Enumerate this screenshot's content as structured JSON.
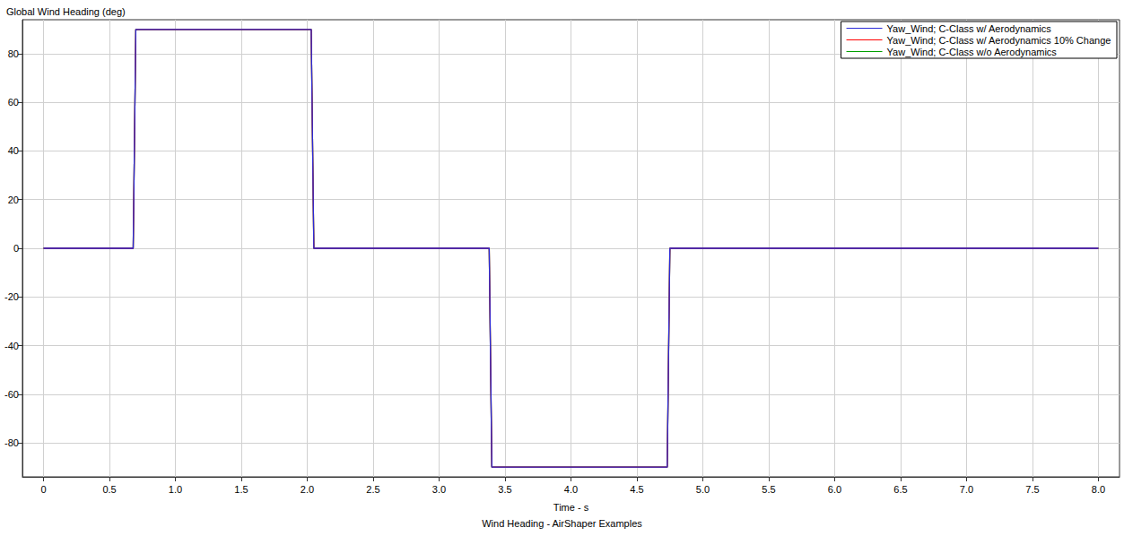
{
  "chart_data": {
    "type": "line",
    "title": "Wind Heading - AirShaper Examples",
    "y_label": "Global Wind Heading (deg)",
    "x_label": "Time - s",
    "x": [
      0,
      0.68,
      0.7,
      2.03,
      2.05,
      3.38,
      3.4,
      4.73,
      4.75,
      8
    ],
    "series": [
      {
        "name": "Yaw_Wind; C-Class w/ Aerodynamics",
        "color": "#2a2ad8",
        "values": [
          0,
          0,
          90,
          90,
          0,
          0,
          -90,
          -90,
          0,
          0
        ]
      },
      {
        "name": "Yaw_Wind; C-Class w/ Aerodynamics 10% Change",
        "color": "#ff0000",
        "values": [
          0,
          0,
          90,
          90,
          0,
          0,
          -90,
          -90,
          0,
          0
        ]
      },
      {
        "name": "Yaw_Wind; C-Class w/o Aerodynamics",
        "color": "#00a000",
        "values": [
          0,
          0,
          90,
          90,
          0,
          0,
          -90,
          -90,
          0,
          0
        ]
      }
    ],
    "xlim": [
      -0.16,
      8.16
    ],
    "xticks": [
      0,
      0.5,
      {
        "value": 1,
        "label": "1.0"
      },
      1.5,
      {
        "value": 2,
        "label": "2.0"
      },
      2.5,
      {
        "value": 3,
        "label": "3.0"
      },
      3.5,
      {
        "value": 4,
        "label": "4.0"
      },
      4.5,
      {
        "value": 5,
        "label": "5.0"
      },
      5.5,
      {
        "value": 6,
        "label": "6.0"
      },
      6.5,
      {
        "value": 7,
        "label": "7.0"
      },
      7.5,
      {
        "value": 8,
        "label": "8.0"
      }
    ],
    "ylim": [
      -94,
      94
    ],
    "yticks": [
      -80,
      -60,
      -40,
      -20,
      0,
      20,
      40,
      60,
      80
    ],
    "grid": true,
    "legend": "upper right"
  }
}
